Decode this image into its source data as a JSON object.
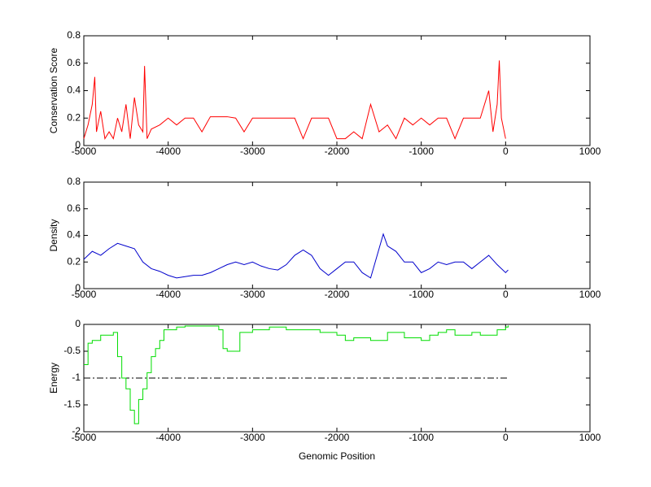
{
  "chart_data": [
    {
      "type": "line",
      "ylabel": "Conservation Score",
      "color": "#ff0000",
      "x": [
        -5000,
        -4950,
        -4900,
        -4870,
        -4850,
        -4800,
        -4750,
        -4700,
        -4650,
        -4600,
        -4550,
        -4500,
        -4450,
        -4400,
        -4350,
        -4300,
        -4280,
        -4250,
        -4200,
        -4100,
        -4000,
        -3900,
        -3800,
        -3700,
        -3600,
        -3500,
        -3400,
        -3300,
        -3200,
        -3100,
        -3000,
        -2900,
        -2800,
        -2700,
        -2600,
        -2500,
        -2400,
        -2300,
        -2200,
        -2100,
        -2000,
        -1900,
        -1800,
        -1700,
        -1600,
        -1500,
        -1400,
        -1300,
        -1200,
        -1100,
        -1000,
        -900,
        -800,
        -700,
        -600,
        -500,
        -400,
        -300,
        -200,
        -150,
        -100,
        -75,
        -50,
        0
      ],
      "values": [
        0.05,
        0.15,
        0.3,
        0.5,
        0.1,
        0.25,
        0.05,
        0.1,
        0.05,
        0.2,
        0.1,
        0.3,
        0.05,
        0.35,
        0.15,
        0.1,
        0.58,
        0.05,
        0.12,
        0.15,
        0.2,
        0.15,
        0.2,
        0.2,
        0.1,
        0.21,
        0.21,
        0.21,
        0.2,
        0.1,
        0.2,
        0.2,
        0.2,
        0.2,
        0.2,
        0.2,
        0.05,
        0.2,
        0.2,
        0.2,
        0.05,
        0.05,
        0.1,
        0.05,
        0.3,
        0.1,
        0.15,
        0.05,
        0.2,
        0.15,
        0.2,
        0.15,
        0.2,
        0.2,
        0.05,
        0.2,
        0.2,
        0.2,
        0.4,
        0.1,
        0.3,
        0.62,
        0.2,
        0.05
      ],
      "xlim": [
        -5000,
        1000
      ],
      "xticks": [
        -5000,
        -4000,
        -3000,
        -2000,
        -1000,
        0,
        1000
      ],
      "ylim": [
        0,
        0.8
      ],
      "yticks": [
        0,
        0.2,
        0.4,
        0.6,
        0.8
      ]
    },
    {
      "type": "line",
      "ylabel": "Density",
      "color": "#0000cc",
      "x": [
        -5000,
        -4900,
        -4800,
        -4700,
        -4600,
        -4500,
        -4400,
        -4300,
        -4200,
        -4100,
        -4000,
        -3900,
        -3800,
        -3700,
        -3600,
        -3500,
        -3400,
        -3300,
        -3200,
        -3100,
        -3000,
        -2900,
        -2800,
        -2700,
        -2600,
        -2500,
        -2400,
        -2300,
        -2200,
        -2100,
        -2000,
        -1900,
        -1800,
        -1700,
        -1600,
        -1500,
        -1450,
        -1400,
        -1300,
        -1200,
        -1100,
        -1000,
        -900,
        -800,
        -700,
        -600,
        -500,
        -400,
        -300,
        -200,
        -100,
        0,
        30
      ],
      "values": [
        0.22,
        0.28,
        0.25,
        0.3,
        0.34,
        0.32,
        0.3,
        0.2,
        0.15,
        0.13,
        0.1,
        0.08,
        0.09,
        0.1,
        0.1,
        0.12,
        0.15,
        0.18,
        0.2,
        0.18,
        0.2,
        0.17,
        0.15,
        0.14,
        0.18,
        0.25,
        0.29,
        0.25,
        0.15,
        0.1,
        0.15,
        0.2,
        0.2,
        0.12,
        0.08,
        0.3,
        0.41,
        0.32,
        0.28,
        0.2,
        0.2,
        0.12,
        0.15,
        0.2,
        0.18,
        0.2,
        0.2,
        0.15,
        0.2,
        0.25,
        0.18,
        0.12,
        0.14
      ],
      "xlim": [
        -5000,
        1000
      ],
      "xticks": [
        -5000,
        -4000,
        -3000,
        -2000,
        -1000,
        0,
        1000
      ],
      "ylim": [
        0,
        0.8
      ],
      "yticks": [
        0,
        0.2,
        0.4,
        0.6,
        0.8
      ]
    },
    {
      "type": "step",
      "ylabel": "Energy",
      "xlabel": "Genomic Position",
      "color": "#00dd00",
      "x": [
        -5000,
        -4950,
        -4900,
        -4800,
        -4700,
        -4650,
        -4600,
        -4550,
        -4500,
        -4450,
        -4400,
        -4350,
        -4300,
        -4250,
        -4200,
        -4150,
        -4100,
        -4050,
        -4000,
        -3900,
        -3800,
        -3600,
        -3400,
        -3350,
        -3300,
        -3200,
        -3150,
        -3000,
        -2800,
        -2600,
        -2400,
        -2200,
        -2000,
        -1900,
        -1800,
        -1600,
        -1400,
        -1200,
        -1000,
        -900,
        -800,
        -700,
        -600,
        -400,
        -300,
        -200,
        -100,
        0,
        30
      ],
      "values": [
        -0.75,
        -0.35,
        -0.3,
        -0.2,
        -0.2,
        -0.15,
        -0.6,
        -1.0,
        -1.2,
        -1.6,
        -1.85,
        -1.4,
        -1.2,
        -0.9,
        -0.6,
        -0.45,
        -0.3,
        -0.1,
        -0.1,
        -0.05,
        -0.03,
        -0.03,
        -0.1,
        -0.45,
        -0.5,
        -0.5,
        -0.15,
        -0.1,
        -0.05,
        -0.1,
        -0.1,
        -0.15,
        -0.2,
        -0.3,
        -0.25,
        -0.3,
        -0.15,
        -0.25,
        -0.3,
        -0.2,
        -0.15,
        -0.1,
        -0.2,
        -0.15,
        -0.2,
        -0.2,
        -0.1,
        -0.05,
        -0.02
      ],
      "hline": -1,
      "xlim": [
        -5000,
        1000
      ],
      "xticks": [
        -5000,
        -4000,
        -3000,
        -2000,
        -1000,
        0,
        1000
      ],
      "ylim": [
        -2,
        0
      ],
      "yticks": [
        -2,
        -1.5,
        -1,
        -0.5,
        0
      ]
    }
  ]
}
